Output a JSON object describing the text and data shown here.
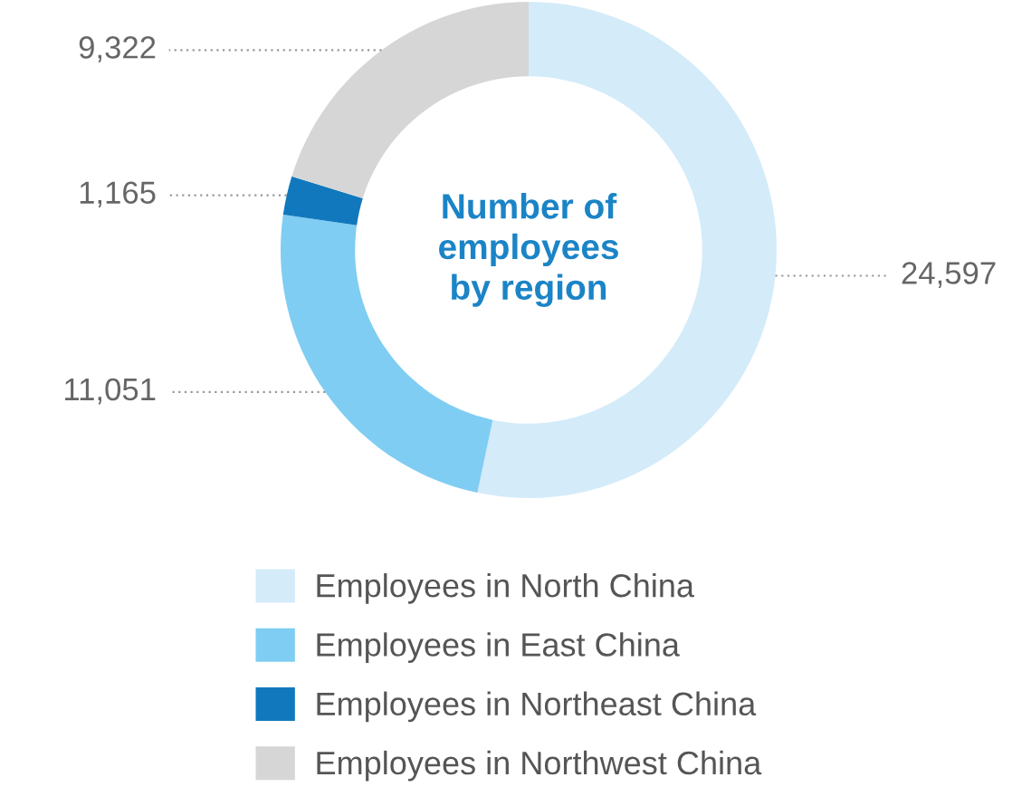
{
  "chart_data": {
    "type": "donut",
    "title": "Number of\nemployees\nby region",
    "categories": [
      "Employees in North China",
      "Employees in East China",
      "Employees in Northeast China",
      "Employees in Northwest China"
    ],
    "values": [
      24597,
      11051,
      1165,
      9322
    ],
    "colors": [
      "#d4ebf9",
      "#7fcdf2",
      "#1178bd",
      "#d6d6d6"
    ],
    "value_labels": [
      "24,597",
      "11,051",
      "1,165",
      "9,322"
    ],
    "legend": "bottom"
  }
}
